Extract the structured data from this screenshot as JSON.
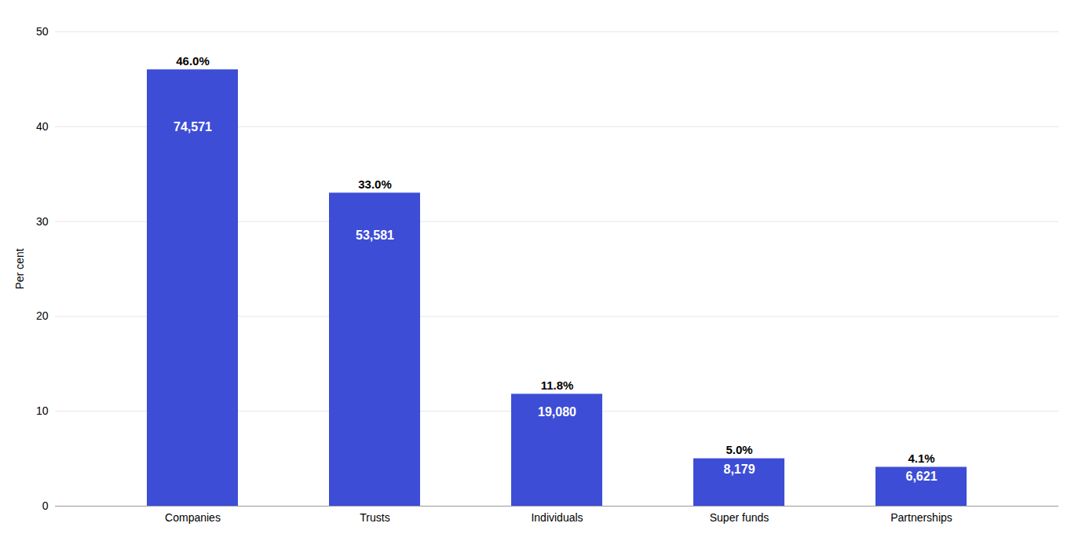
{
  "chart_data": {
    "type": "bar",
    "categories": [
      "Companies",
      "Trusts",
      "Individuals",
      "Super funds",
      "Partnerships"
    ],
    "values": [
      46.0,
      33.0,
      11.8,
      5.0,
      4.1
    ],
    "value_labels": [
      "46.0%",
      "33.0%",
      "11.8%",
      "5.0%",
      "4.1%"
    ],
    "data_labels": true,
    "counts": [
      "74,571",
      "53,581",
      "19,080",
      "8,179",
      "6,621"
    ],
    "color": "#3d4dd6",
    "ylabel": "Per cent",
    "ylim": [
      0,
      50
    ],
    "yticks": [
      0,
      10,
      20,
      30,
      40,
      50
    ],
    "grid": true
  }
}
